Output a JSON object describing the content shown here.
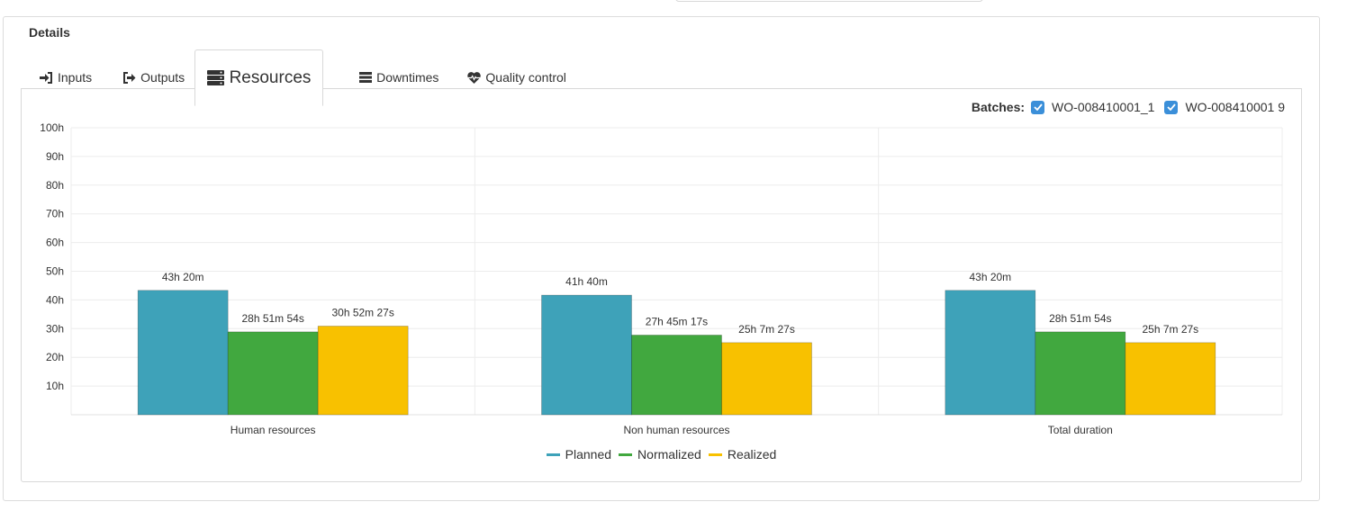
{
  "details": {
    "title": "Details"
  },
  "tabs": [
    {
      "label": "Inputs",
      "icon": "sign-in-icon"
    },
    {
      "label": "Outputs",
      "icon": "sign-out-icon"
    },
    {
      "label": "Resources",
      "icon": "server-icon",
      "active": true
    },
    {
      "label": "Downtimes",
      "icon": "list-icon"
    },
    {
      "label": "Quality control",
      "icon": "heartbeat-icon"
    }
  ],
  "batches": {
    "label": "Batches:",
    "items": [
      {
        "name": "WO-008410001_1",
        "checked": true
      },
      {
        "name": "WO-008410001 9",
        "checked": true
      }
    ]
  },
  "colors": {
    "planned": "#3ea2b9",
    "normalized": "#41a83f",
    "realized": "#f8c100"
  },
  "chart_data": {
    "type": "bar",
    "categories": [
      "Human resources",
      "Non human resources",
      "Total duration"
    ],
    "series": [
      {
        "name": "Planned",
        "values": [
          43.33,
          41.67,
          43.33
        ],
        "labels": [
          "43h 20m",
          "41h 40m",
          "43h 20m"
        ]
      },
      {
        "name": "Normalized",
        "values": [
          28.87,
          27.75,
          28.87
        ],
        "labels": [
          "28h 51m 54s",
          "27h 45m 17s",
          "28h 51m 54s"
        ]
      },
      {
        "name": "Realized",
        "values": [
          30.87,
          25.12,
          25.12
        ],
        "labels": [
          "30h 52m 27s",
          "25h 7m 27s",
          "25h 7m 27s"
        ]
      }
    ],
    "ylim": [
      0,
      100
    ],
    "yticks": [
      10,
      20,
      30,
      40,
      50,
      60,
      70,
      80,
      90,
      100
    ],
    "ytick_labels": [
      "10h",
      "20h",
      "30h",
      "40h",
      "50h",
      "60h",
      "70h",
      "80h",
      "90h",
      "100h"
    ],
    "grid": true,
    "legend": "bottom-center"
  }
}
